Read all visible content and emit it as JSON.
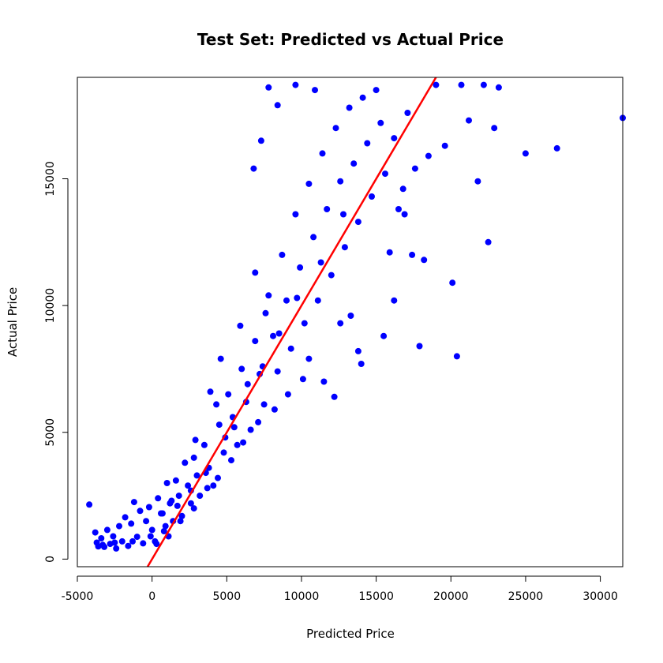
{
  "chart_data": {
    "type": "scatter",
    "title": "Test Set: Predicted vs Actual Price",
    "xlabel": "Predicted Price",
    "ylabel": "Actual Price",
    "xlim": [
      -5000,
      31500
    ],
    "ylim": [
      -300,
      19000
    ],
    "x_ticks": [
      -5000,
      0,
      5000,
      10000,
      15000,
      20000,
      25000,
      30000
    ],
    "x_tick_labels": [
      "-5000",
      "0",
      "5000",
      "10000",
      "15000",
      "20000",
      "25000",
      "30000"
    ],
    "y_ticks": [
      0,
      5000,
      10000,
      15000
    ],
    "y_tick_labels": [
      "0",
      "5000",
      "10000",
      "15000"
    ],
    "grid": false,
    "legend": "none",
    "colors": {
      "points": "#0000ff",
      "reference_line": "#ff0000"
    },
    "reference_line": {
      "label": "",
      "slope": 1,
      "intercept": 0
    },
    "series": [
      {
        "values": [
          [
            -4200,
            2150
          ],
          [
            -3800,
            1050
          ],
          [
            -3700,
            650
          ],
          [
            -3600,
            500
          ],
          [
            -3400,
            820
          ],
          [
            -3200,
            480
          ],
          [
            -3000,
            1150
          ],
          [
            -2800,
            600
          ],
          [
            -2600,
            900
          ],
          [
            -2400,
            420
          ],
          [
            -2200,
            1300
          ],
          [
            -2000,
            700
          ],
          [
            -1800,
            1650
          ],
          [
            -1600,
            520
          ],
          [
            -1400,
            1400
          ],
          [
            -1200,
            2250
          ],
          [
            -1000,
            880
          ],
          [
            -800,
            1900
          ],
          [
            -600,
            620
          ],
          [
            -400,
            1500
          ],
          [
            -200,
            2050
          ],
          [
            0,
            1150
          ],
          [
            200,
            700
          ],
          [
            400,
            2400
          ],
          [
            600,
            1800
          ],
          [
            800,
            1100
          ],
          [
            1000,
            3000
          ],
          [
            1200,
            2200
          ],
          [
            1400,
            1500
          ],
          [
            1600,
            3100
          ],
          [
            1800,
            2500
          ],
          [
            2000,
            1700
          ],
          [
            2200,
            3800
          ],
          [
            2400,
            2900
          ],
          [
            2600,
            2200
          ],
          [
            2800,
            4000
          ],
          [
            3000,
            3300
          ],
          [
            3200,
            2500
          ],
          [
            3500,
            4500
          ],
          [
            3800,
            3600
          ],
          [
            4100,
            2900
          ],
          [
            4300,
            6100
          ],
          [
            4500,
            5300
          ],
          [
            4800,
            4200
          ],
          [
            5100,
            6500
          ],
          [
            5400,
            5600
          ],
          [
            5700,
            4500
          ],
          [
            6000,
            7500
          ],
          [
            6300,
            6200
          ],
          [
            6600,
            5100
          ],
          [
            6900,
            8600
          ],
          [
            7200,
            7300
          ],
          [
            7500,
            6100
          ],
          [
            7800,
            10400
          ],
          [
            8100,
            8800
          ],
          [
            8400,
            7400
          ],
          [
            8700,
            12000
          ],
          [
            9000,
            10200
          ],
          [
            9300,
            8300
          ],
          [
            9600,
            13600
          ],
          [
            9900,
            11500
          ],
          [
            10200,
            9300
          ],
          [
            10500,
            14800
          ],
          [
            10800,
            12700
          ],
          [
            11100,
            10200
          ],
          [
            11400,
            16000
          ],
          [
            11700,
            13800
          ],
          [
            12000,
            11200
          ],
          [
            12300,
            17000
          ],
          [
            12600,
            14900
          ],
          [
            12900,
            12300
          ],
          [
            13200,
            17800
          ],
          [
            13500,
            15600
          ],
          [
            13800,
            13300
          ],
          [
            14100,
            18200
          ],
          [
            14400,
            16400
          ],
          [
            14700,
            14300
          ],
          [
            15000,
            18500
          ],
          [
            15300,
            17200
          ],
          [
            15600,
            15200
          ],
          [
            15900,
            12100
          ],
          [
            16200,
            16600
          ],
          [
            16500,
            13800
          ],
          [
            16800,
            14600
          ],
          [
            17100,
            17600
          ],
          [
            17400,
            12000
          ],
          [
            17900,
            8400
          ],
          [
            18500,
            15900
          ],
          [
            19000,
            18700
          ],
          [
            19600,
            16300
          ],
          [
            20100,
            10900
          ],
          [
            20400,
            8000
          ],
          [
            20700,
            18700
          ],
          [
            21200,
            17300
          ],
          [
            21800,
            14900
          ],
          [
            22200,
            18700
          ],
          [
            22500,
            12500
          ],
          [
            22900,
            17000
          ],
          [
            23200,
            18600
          ],
          [
            25000,
            16000
          ],
          [
            27100,
            16200
          ],
          [
            31500,
            17400
          ],
          [
            7800,
            18600
          ],
          [
            8400,
            17900
          ],
          [
            7300,
            16500
          ],
          [
            6800,
            15400
          ],
          [
            9600,
            18700
          ],
          [
            10900,
            18500
          ],
          [
            13800,
            8200
          ],
          [
            12600,
            9300
          ],
          [
            11500,
            7000
          ],
          [
            10500,
            7900
          ],
          [
            12200,
            6400
          ],
          [
            13300,
            9600
          ],
          [
            7600,
            9700
          ],
          [
            6900,
            11300
          ],
          [
            5900,
            9200
          ],
          [
            4600,
            7900
          ],
          [
            3900,
            6600
          ],
          [
            2900,
            4700
          ],
          [
            1300,
            2300
          ],
          [
            700,
            1800
          ],
          [
            -100,
            900
          ],
          [
            -1300,
            700
          ],
          [
            -2500,
            650
          ],
          [
            -3300,
            560
          ],
          [
            14000,
            7700
          ],
          [
            15500,
            8800
          ],
          [
            16200,
            10200
          ],
          [
            18200,
            11800
          ],
          [
            16900,
            13600
          ],
          [
            17600,
            15400
          ],
          [
            12800,
            13600
          ],
          [
            11300,
            11700
          ],
          [
            9700,
            10300
          ],
          [
            8500,
            8900
          ],
          [
            7400,
            7600
          ],
          [
            6400,
            6900
          ],
          [
            5500,
            5200
          ],
          [
            4900,
            4800
          ],
          [
            3600,
            3400
          ],
          [
            2600,
            2700
          ],
          [
            1700,
            2100
          ],
          [
            900,
            1300
          ],
          [
            10100,
            7100
          ],
          [
            9100,
            6500
          ],
          [
            8200,
            5900
          ],
          [
            7100,
            5400
          ],
          [
            6100,
            4600
          ],
          [
            5300,
            3900
          ],
          [
            4400,
            3200
          ],
          [
            3700,
            2800
          ],
          [
            2800,
            2000
          ],
          [
            1900,
            1500
          ],
          [
            1100,
            900
          ],
          [
            300,
            600
          ]
        ]
      }
    ]
  }
}
